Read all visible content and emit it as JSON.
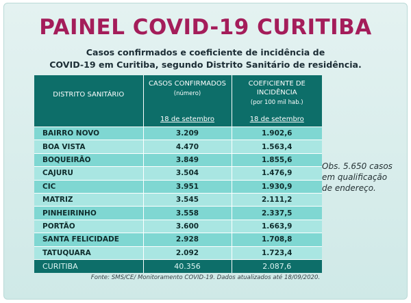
{
  "title": "PAINEL COVID-19 CURITIBA",
  "subtitle_line1": "Casos confirmados e coeficiente de incidência de",
  "subtitle_line2": "COVID-19 em Curitiba, segundo Distrito Sanitário de residência.",
  "table": {
    "header": {
      "col1": "DISTRITO SANITÁRIO",
      "col2_title": "CASOS CONFIRMADOS",
      "col2_note": "(número)",
      "col3_title": "COEFICIENTE DE INCIDÊNCIA",
      "col3_note": "(por 100 mil hab.)",
      "date": "18 de setembro"
    },
    "rows": [
      {
        "district": "BAIRRO NOVO",
        "cases": "3.209",
        "coef": "1.902,6"
      },
      {
        "district": "BOA VISTA",
        "cases": "4.470",
        "coef": "1.563,4"
      },
      {
        "district": "BOQUEIRÃO",
        "cases": "3.849",
        "coef": "1.855,6"
      },
      {
        "district": "CAJURU",
        "cases": "3.504",
        "coef": "1.476,9"
      },
      {
        "district": "CIC",
        "cases": "3.951",
        "coef": "1.930,9"
      },
      {
        "district": "MATRIZ",
        "cases": "3.545",
        "coef": "2.111,2"
      },
      {
        "district": "PINHEIRINHO",
        "cases": "3.558",
        "coef": "2.337,5"
      },
      {
        "district": "PORTÃO",
        "cases": "3.600",
        "coef": "1.663,9"
      },
      {
        "district": "SANTA FELICIDADE",
        "cases": "2.928",
        "coef": "1.708,8"
      },
      {
        "district": "TATUQUARA",
        "cases": "2.092",
        "coef": "1.723,4"
      }
    ],
    "total": {
      "district": "CURITIBA",
      "cases": "40.356",
      "coef": "2.087,6"
    }
  },
  "obs": {
    "line1": "Obs. 5.650 casos",
    "line2": "em qualificação",
    "line3": "de endereço."
  },
  "source": "Fonte: SMS/CE/ Monitoramento COVID-19. Dados atualizados até 18/09/2020.",
  "colors": {
    "title": "#a41d5a",
    "header_bg": "#0d6e69",
    "row_dark": "#7fd7d2",
    "row_light": "#a9e6e2",
    "background": "#d8eeec"
  }
}
